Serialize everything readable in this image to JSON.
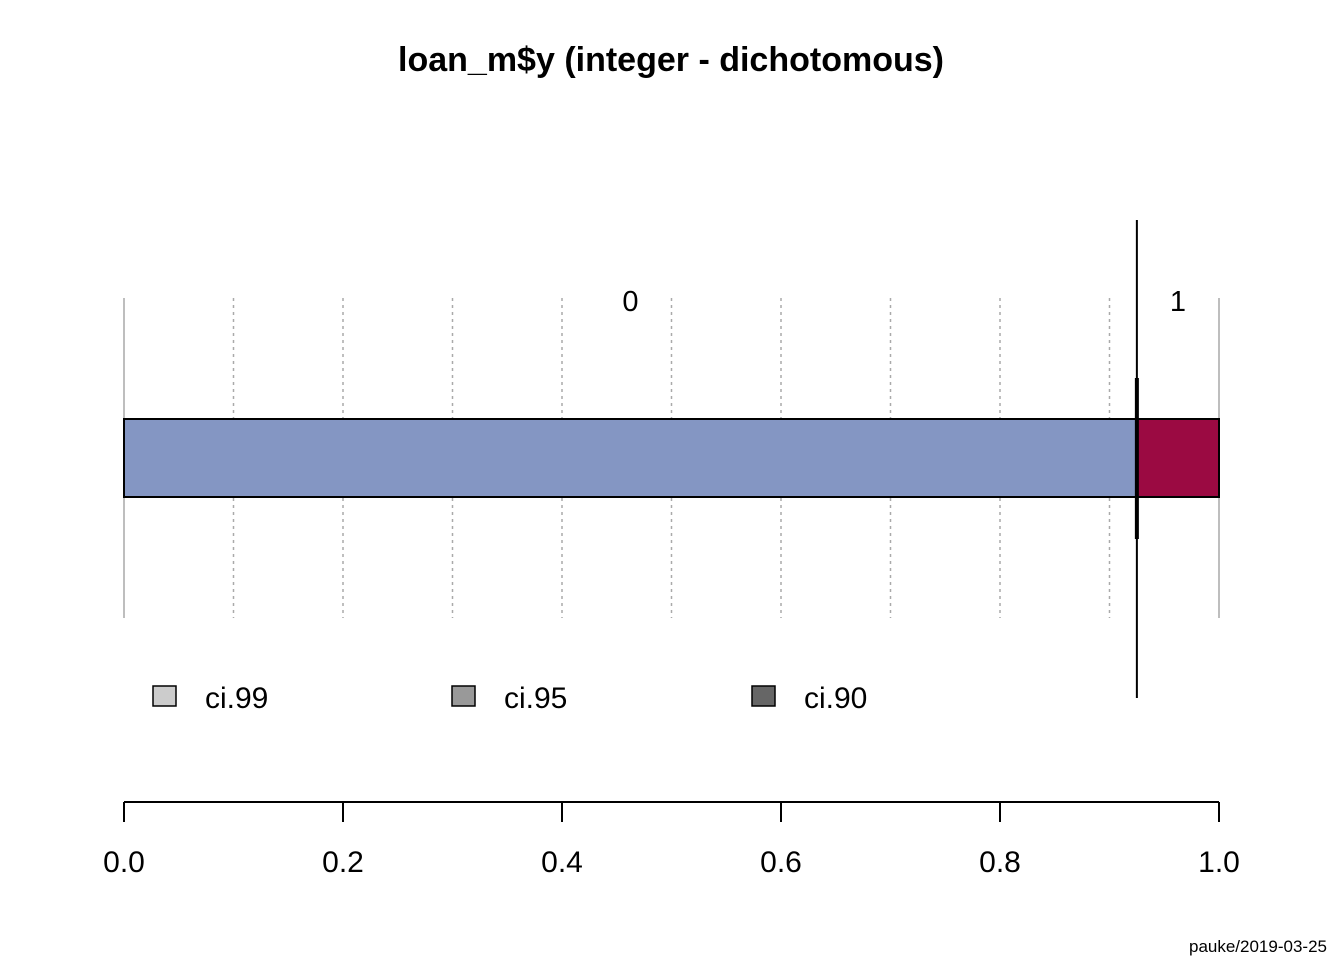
{
  "chart_data": {
    "type": "bar",
    "orientation": "horizontal-stacked",
    "title": "loan_m$y (integer - dichotomous)",
    "categories": [
      "0",
      "1"
    ],
    "values": [
      0.925,
      0.075
    ],
    "colors": [
      "#8496C3",
      "#9B0A42"
    ],
    "cumulative_marker": 0.925,
    "xlim": [
      0,
      1
    ],
    "xticks": [
      0.0,
      0.2,
      0.4,
      0.6,
      0.8,
      1.0
    ],
    "xtick_labels": [
      "0.0",
      "0.2",
      "0.4",
      "0.6",
      "0.8",
      "1.0"
    ],
    "grid": true,
    "grid_minor_step": 0.1,
    "legend": {
      "placement": "bottom",
      "items": [
        {
          "label": "ci.99",
          "color": "#CCCCCC"
        },
        {
          "label": "ci.95",
          "color": "#999999"
        },
        {
          "label": "ci.90",
          "color": "#666666"
        }
      ]
    }
  },
  "footer": "pauke/2019-03-25"
}
